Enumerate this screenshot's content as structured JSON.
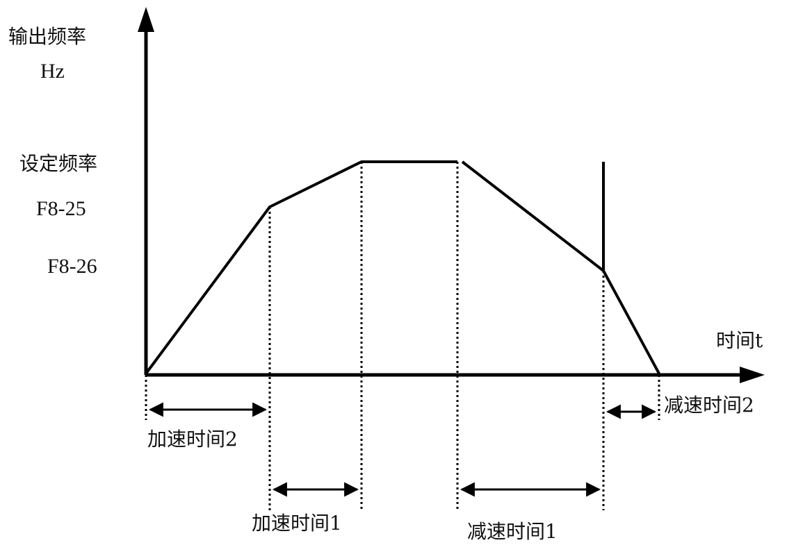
{
  "axes": {
    "y_label": "输出频率",
    "y_unit": "Hz",
    "x_label": "时间t"
  },
  "levels": {
    "set_freq": "设定频率",
    "f8_25": "F8-25",
    "f8_26": "F8-26"
  },
  "intervals": {
    "accel_2": "加速时间2",
    "accel_1": "加速时间1",
    "decel_1": "减速时间1",
    "decel_2": "减速时间2"
  },
  "colors": {
    "line": "#000000",
    "text": "#111111"
  }
}
